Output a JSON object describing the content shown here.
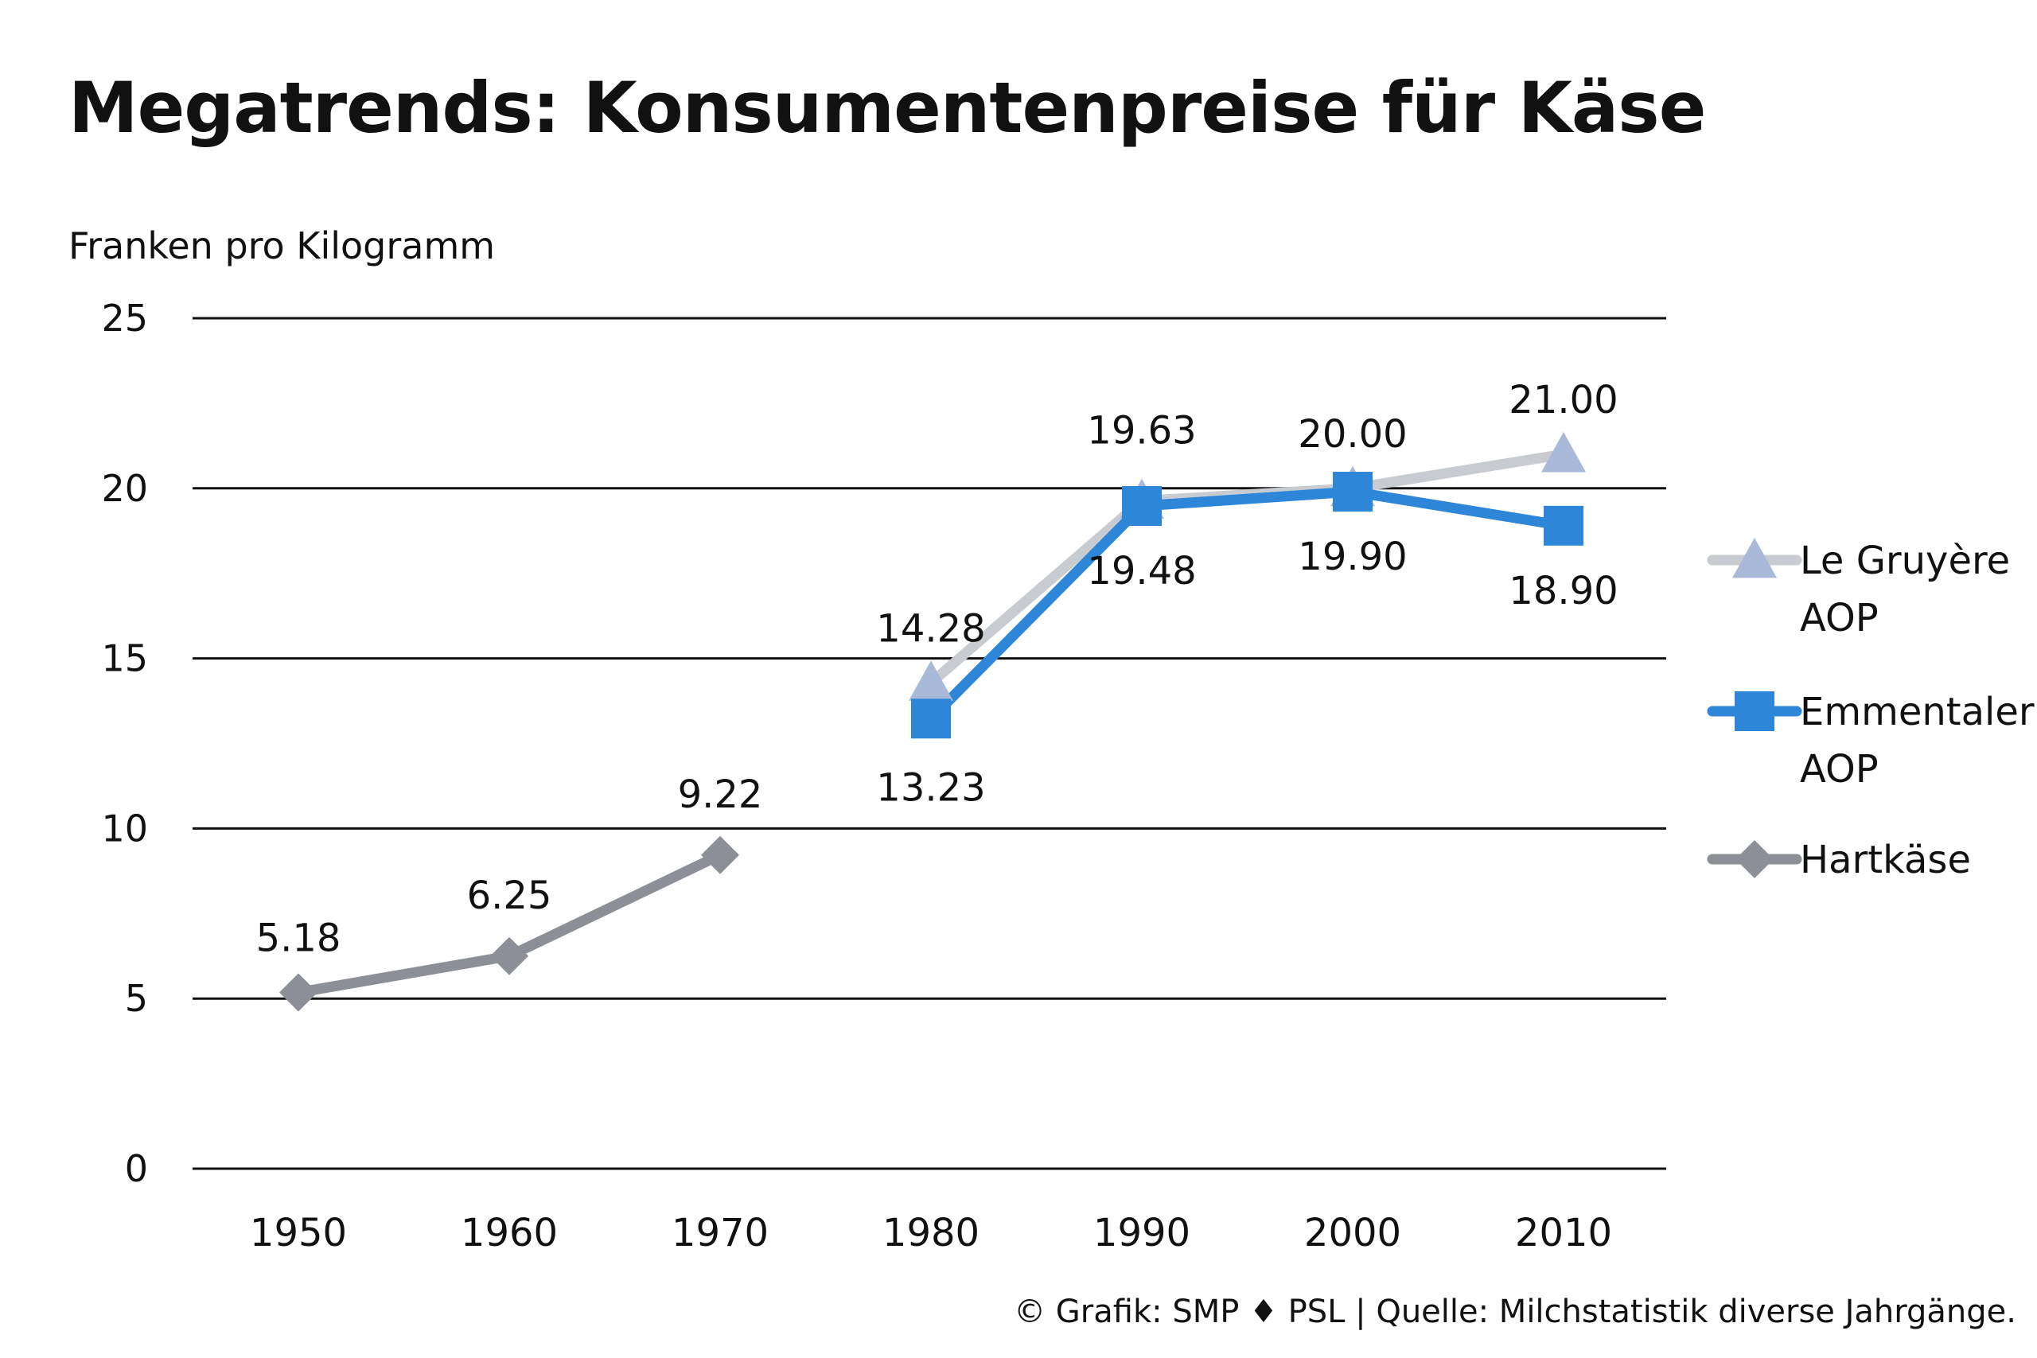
{
  "title": "Megatrends: Konsumentenpreise für Käse",
  "footer": "© Grafik: SMP ♦ PSL | Quelle: Milchstatistik diverse Jahrgänge.",
  "chart_data": {
    "type": "line",
    "ylabel": "Franken pro Kilogramm",
    "xlabel": "",
    "ylim": [
      0,
      25
    ],
    "yticks": [
      "0",
      "5",
      "10",
      "15",
      "20",
      "25"
    ],
    "categories": [
      "1950",
      "1960",
      "1970",
      "1980",
      "1990",
      "2000",
      "2010"
    ],
    "grid": true,
    "legend_position": "right",
    "series": [
      {
        "name": "Le Gruyère AOP",
        "legend_lines": [
          "Le Gruyère",
          "AOP"
        ],
        "marker": "triangle",
        "color": "#c8ccd1",
        "marker_color": "#a8b9d9",
        "values": [
          null,
          null,
          null,
          14.28,
          19.63,
          20.0,
          21.0
        ],
        "labels": [
          "",
          "",
          "",
          "14.28",
          "19.63",
          "20.00",
          "21.00"
        ]
      },
      {
        "name": "Emmentaler AOP",
        "legend_lines": [
          "Emmentaler",
          "AOP"
        ],
        "marker": "square",
        "color": "#2e86d8",
        "marker_color": "#2e86d8",
        "values": [
          null,
          null,
          null,
          13.23,
          19.48,
          19.9,
          18.9
        ],
        "labels": [
          "",
          "",
          "",
          "13.23",
          "19.48",
          "19.90",
          "18.90"
        ]
      },
      {
        "name": "Hartkäse",
        "legend_lines": [
          "Hartkäse"
        ],
        "marker": "diamond",
        "color": "#8c9096",
        "marker_color": "#8c9096",
        "values": [
          5.18,
          6.25,
          9.22,
          null,
          null,
          null,
          null
        ],
        "labels": [
          "5.18",
          "6.25",
          "9.22",
          "",
          "",
          "",
          ""
        ]
      }
    ]
  }
}
